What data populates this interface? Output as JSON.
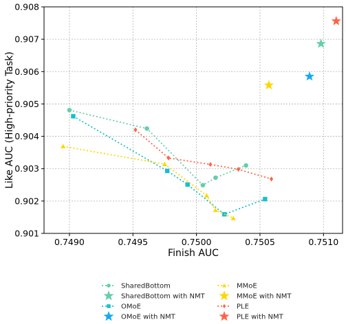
{
  "chart_data": {
    "type": "scatter",
    "title": "",
    "xlabel": "Finish AUC",
    "ylabel": "Like AUC (High-priority Task)",
    "xlim": [
      0.7488,
      0.75115
    ],
    "ylim": [
      0.901,
      0.908
    ],
    "xticks": [
      0.749,
      0.7495,
      0.75,
      0.7505,
      0.751
    ],
    "xtick_labels": [
      "0.7490",
      "0.7495",
      "0.7500",
      "0.7505",
      "0.7510"
    ],
    "yticks": [
      0.901,
      0.902,
      0.903,
      0.904,
      0.905,
      0.906,
      0.907,
      0.908
    ],
    "ytick_labels": [
      "0.901",
      "0.902",
      "0.903",
      "0.904",
      "0.905",
      "0.906",
      "0.907",
      "0.908"
    ],
    "grid": true,
    "legend_position": "bottom",
    "series": [
      {
        "name": "SharedBottom",
        "color": "#66cdaa",
        "marker": "circle",
        "line": "dotted",
        "points": [
          [
            0.749,
            0.90481
          ],
          [
            0.74961,
            0.90424
          ],
          [
            0.75005,
            0.90249
          ],
          [
            0.75015,
            0.90272
          ],
          [
            0.75039,
            0.9031
          ]
        ]
      },
      {
        "name": "SharedBottom with NMT",
        "color": "#66cdaa",
        "marker": "star",
        "line": "none",
        "points": [
          [
            0.75098,
            0.90686
          ]
        ]
      },
      {
        "name": "OMoE",
        "color": "#17becf",
        "marker": "square",
        "line": "dotted",
        "points": [
          [
            0.74903,
            0.90462
          ],
          [
            0.74977,
            0.90293
          ],
          [
            0.74993,
            0.90251
          ],
          [
            0.75022,
            0.90159
          ],
          [
            0.75054,
            0.90206
          ]
        ]
      },
      {
        "name": "OMoE with NMT",
        "color": "#17a9f0",
        "marker": "star",
        "line": "none",
        "points": [
          [
            0.75089,
            0.90585
          ]
        ]
      },
      {
        "name": "MMoE",
        "color": "#ffd700",
        "marker": "triangle",
        "line": "dotted",
        "points": [
          [
            0.74895,
            0.90369
          ],
          [
            0.74975,
            0.90314
          ],
          [
            0.75008,
            0.90217
          ],
          [
            0.75015,
            0.90172
          ],
          [
            0.75029,
            0.90147
          ]
        ]
      },
      {
        "name": "MMoE with NMT",
        "color": "#ffd700",
        "marker": "star",
        "line": "none",
        "points": [
          [
            0.75057,
            0.90558
          ]
        ]
      },
      {
        "name": "PLE",
        "color": "#ff6347",
        "marker": "diamond",
        "line": "dotted",
        "points": [
          [
            0.74952,
            0.9042
          ],
          [
            0.74978,
            0.90333
          ],
          [
            0.75011,
            0.90313
          ],
          [
            0.75033,
            0.90298
          ],
          [
            0.75059,
            0.90268
          ]
        ]
      },
      {
        "name": "PLE with NMT",
        "color": "#ff6347",
        "marker": "star",
        "line": "none",
        "points": [
          [
            0.7511,
            0.90756
          ]
        ]
      }
    ]
  }
}
